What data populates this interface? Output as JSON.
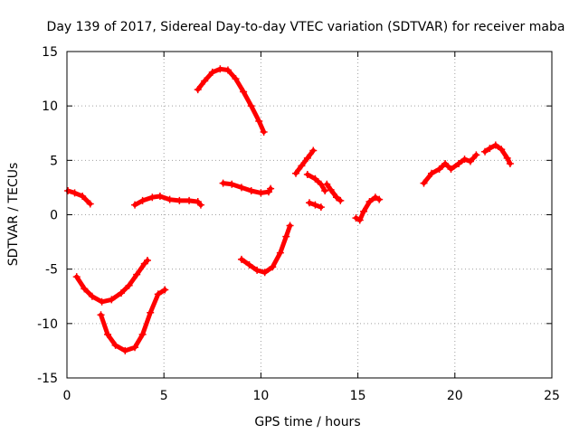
{
  "chart_data": {
    "type": "scatter",
    "title": "Day 139 of 2017, Sidereal Day-to-day VTEC variation (SDTVAR) for receiver maba",
    "xlabel": "GPS time / hours",
    "ylabel": "SDTVAR / TECUs",
    "xlim": [
      0,
      25
    ],
    "ylim": [
      -15,
      15
    ],
    "xticks": [
      0,
      5,
      10,
      15,
      20,
      25
    ],
    "yticks": [
      -15,
      -10,
      -5,
      0,
      5,
      10,
      15
    ],
    "grid": true,
    "marker_color": "#ff0000",
    "series": [
      {
        "color": "#ff0000",
        "segments": [
          [
            [
              0.05,
              2.2
            ],
            [
              0.4,
              2.0
            ],
            [
              0.8,
              1.7
            ],
            [
              1.2,
              1.0
            ]
          ],
          [
            [
              0.5,
              -5.7
            ],
            [
              0.9,
              -6.8
            ],
            [
              1.3,
              -7.5
            ],
            [
              1.8,
              -8.0
            ],
            [
              2.3,
              -7.8
            ],
            [
              2.8,
              -7.2
            ],
            [
              3.2,
              -6.5
            ],
            [
              3.6,
              -5.5
            ],
            [
              4.0,
              -4.5
            ],
            [
              4.15,
              -4.2
            ]
          ],
          [
            [
              1.75,
              -9.2
            ],
            [
              2.1,
              -11.0
            ],
            [
              2.5,
              -12.0
            ],
            [
              3.0,
              -12.5
            ],
            [
              3.5,
              -12.2
            ],
            [
              3.9,
              -11.0
            ],
            [
              4.3,
              -9.0
            ],
            [
              4.7,
              -7.3
            ],
            [
              5.05,
              -6.9
            ]
          ],
          [
            [
              3.5,
              0.9
            ],
            [
              3.9,
              1.3
            ],
            [
              4.4,
              1.6
            ],
            [
              4.8,
              1.7
            ],
            [
              5.3,
              1.4
            ],
            [
              5.8,
              1.3
            ],
            [
              6.3,
              1.3
            ],
            [
              6.75,
              1.2
            ],
            [
              6.9,
              0.9
            ]
          ],
          [
            [
              6.75,
              11.5
            ],
            [
              7.1,
              12.3
            ],
            [
              7.5,
              13.1
            ],
            [
              7.9,
              13.4
            ],
            [
              8.3,
              13.3
            ],
            [
              8.7,
              12.5
            ],
            [
              9.1,
              11.3
            ],
            [
              9.5,
              10.0
            ],
            [
              9.9,
              8.6
            ],
            [
              10.15,
              7.6
            ]
          ],
          [
            [
              8.05,
              2.9
            ],
            [
              8.5,
              2.8
            ],
            [
              9.0,
              2.5
            ],
            [
              9.5,
              2.2
            ],
            [
              10.0,
              2.0
            ],
            [
              10.4,
              2.1
            ],
            [
              10.5,
              2.4
            ]
          ],
          [
            [
              9.0,
              -4.1
            ],
            [
              9.4,
              -4.6
            ],
            [
              9.8,
              -5.1
            ],
            [
              10.2,
              -5.3
            ],
            [
              10.6,
              -4.8
            ],
            [
              11.0,
              -3.5
            ],
            [
              11.3,
              -2.0
            ],
            [
              11.5,
              -1.0
            ]
          ],
          [
            [
              11.8,
              3.8
            ],
            [
              12.1,
              4.5
            ],
            [
              12.4,
              5.2
            ],
            [
              12.7,
              5.9
            ]
          ],
          [
            [
              12.4,
              3.7
            ],
            [
              12.8,
              3.3
            ],
            [
              13.1,
              2.8
            ],
            [
              13.3,
              2.2
            ]
          ],
          [
            [
              12.5,
              1.1
            ],
            [
              12.8,
              0.9
            ],
            [
              13.1,
              0.7
            ]
          ],
          [
            [
              13.4,
              2.8
            ],
            [
              13.6,
              2.3
            ],
            [
              13.9,
              1.6
            ],
            [
              14.1,
              1.3
            ]
          ],
          [
            [
              14.9,
              -0.3
            ],
            [
              15.1,
              -0.5
            ],
            [
              15.3,
              0.3
            ],
            [
              15.6,
              1.2
            ],
            [
              15.9,
              1.6
            ],
            [
              16.1,
              1.4
            ]
          ],
          [
            [
              18.4,
              2.9
            ],
            [
              18.8,
              3.8
            ],
            [
              19.2,
              4.2
            ],
            [
              19.5,
              4.7
            ],
            [
              19.8,
              4.2
            ],
            [
              20.2,
              4.7
            ],
            [
              20.5,
              5.1
            ],
            [
              20.8,
              4.9
            ],
            [
              21.1,
              5.5
            ]
          ],
          [
            [
              21.55,
              5.8
            ],
            [
              21.8,
              6.1
            ],
            [
              22.1,
              6.4
            ],
            [
              22.4,
              6.0
            ],
            [
              22.7,
              5.2
            ],
            [
              22.85,
              4.7
            ]
          ]
        ]
      }
    ]
  }
}
